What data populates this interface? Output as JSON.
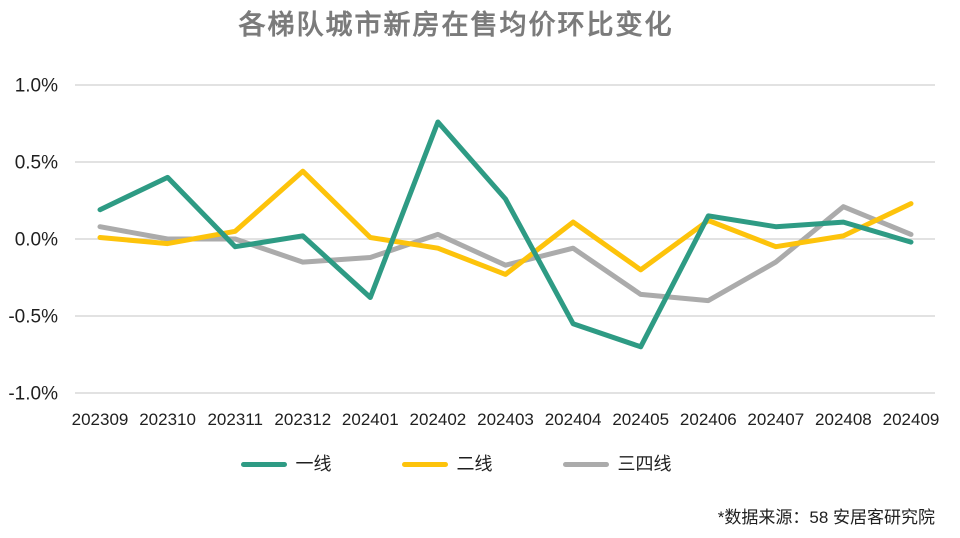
{
  "chart_data": {
    "type": "line",
    "title": "各梯队城市新房在售均价环比变化",
    "xlabel": "",
    "ylabel": "",
    "categories": [
      "202309",
      "202310",
      "202311",
      "202312",
      "202401",
      "202402",
      "202403",
      "202404",
      "202405",
      "202406",
      "202407",
      "202408",
      "202409"
    ],
    "series": [
      {
        "name": "一线",
        "color": "#2e9b84",
        "values": [
          0.19,
          0.4,
          -0.05,
          0.02,
          -0.38,
          0.76,
          0.26,
          -0.55,
          -0.7,
          0.15,
          0.08,
          0.11,
          -0.02
        ]
      },
      {
        "name": "二线",
        "color": "#fdc30b",
        "values": [
          0.01,
          -0.03,
          0.05,
          0.44,
          0.01,
          -0.06,
          -0.23,
          0.11,
          -0.2,
          0.12,
          -0.05,
          0.02,
          0.23
        ]
      },
      {
        "name": "三四线",
        "color": "#ababab",
        "values": [
          0.08,
          0.0,
          0.0,
          -0.15,
          -0.12,
          0.03,
          -0.17,
          -0.06,
          -0.36,
          -0.4,
          -0.15,
          0.21,
          0.03
        ]
      }
    ],
    "ylim": [
      -1.0,
      1.0
    ],
    "yticks": [
      1.0,
      0.5,
      0.0,
      -0.5,
      -1.0
    ],
    "ytick_labels": [
      "1.0%",
      "0.5%",
      "0.0%",
      "-0.5%",
      "-1.0%"
    ],
    "grid": "horizontal gridlines only, no axis lines, no markers",
    "legend_position": "bottom",
    "colors": {
      "gridline": "#d8d8d8",
      "axis_text": "#1f1f1f",
      "title_text": "#7b7b7b",
      "background": "#ffffff"
    }
  },
  "footer": {
    "source_note": "*数据来源：58 安居客研究院"
  }
}
